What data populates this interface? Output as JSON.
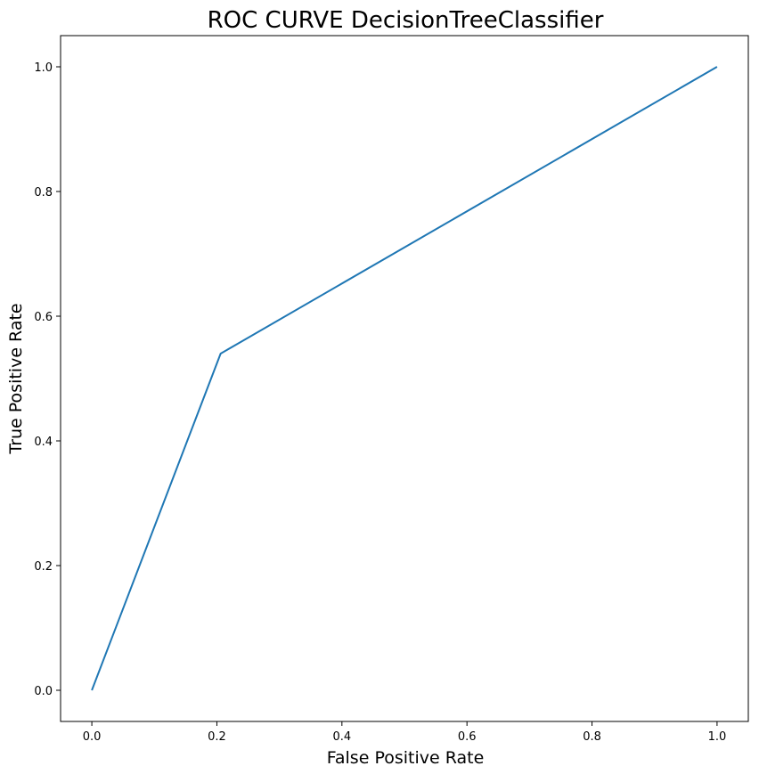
{
  "chart_data": {
    "type": "line",
    "title": "ROC CURVE DecisionTreeClassifier",
    "xlabel": "False Positive Rate",
    "ylabel": "True Positive Rate",
    "xlim": [
      -0.05,
      1.05
    ],
    "ylim": [
      -0.05,
      1.05
    ],
    "xticks": [
      0.0,
      0.2,
      0.4,
      0.6,
      0.8,
      1.0
    ],
    "yticks": [
      0.0,
      0.2,
      0.4,
      0.6,
      0.8,
      1.0
    ],
    "xtick_labels": [
      "0.0",
      "0.2",
      "0.4",
      "0.6",
      "0.8",
      "1.0"
    ],
    "ytick_labels": [
      "0.0",
      "0.2",
      "0.4",
      "0.6",
      "0.8",
      "1.0"
    ],
    "grid": false,
    "legend": "none",
    "series": [
      {
        "color": "#1f77b4",
        "x": [
          0.0,
          0.206,
          1.0
        ],
        "y": [
          0.0,
          0.54,
          1.0
        ]
      }
    ]
  }
}
